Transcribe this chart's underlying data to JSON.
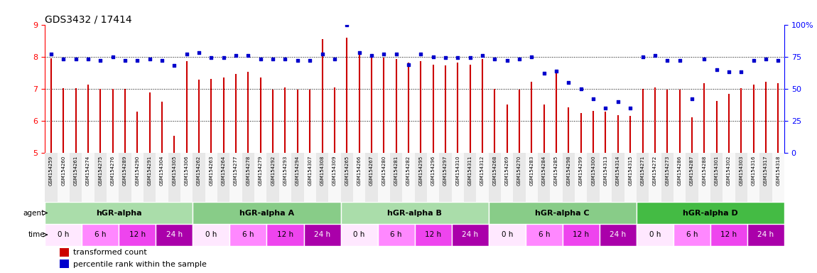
{
  "title": "GDS3432 / 17414",
  "samples": [
    "GSM154259",
    "GSM154260",
    "GSM154261",
    "GSM154274",
    "GSM154275",
    "GSM154276",
    "GSM154289",
    "GSM154290",
    "GSM154291",
    "GSM154304",
    "GSM154305",
    "GSM154306",
    "GSM154262",
    "GSM154263",
    "GSM154264",
    "GSM154277",
    "GSM154278",
    "GSM154279",
    "GSM154292",
    "GSM154293",
    "GSM154294",
    "GSM154307",
    "GSM154308",
    "GSM154309",
    "GSM154265",
    "GSM154266",
    "GSM154267",
    "GSM154280",
    "GSM154281",
    "GSM154282",
    "GSM154295",
    "GSM154296",
    "GSM154297",
    "GSM154310",
    "GSM154311",
    "GSM154312",
    "GSM154268",
    "GSM154269",
    "GSM154270",
    "GSM154283",
    "GSM154284",
    "GSM154285",
    "GSM154298",
    "GSM154299",
    "GSM154300",
    "GSM154313",
    "GSM154314",
    "GSM154315",
    "GSM154271",
    "GSM154272",
    "GSM154273",
    "GSM154286",
    "GSM154287",
    "GSM154288",
    "GSM154301",
    "GSM154302",
    "GSM154303",
    "GSM154316",
    "GSM154317",
    "GSM154318"
  ],
  "red_values": [
    7.95,
    7.02,
    7.02,
    7.12,
    7.0,
    7.0,
    7.0,
    6.28,
    6.88,
    6.6,
    5.53,
    7.85,
    7.28,
    7.3,
    7.35,
    7.45,
    7.52,
    7.35,
    6.98,
    7.05,
    6.98,
    6.98,
    8.55,
    7.05,
    8.6,
    8.05,
    8.02,
    7.98,
    7.92,
    7.82,
    7.85,
    7.75,
    7.72,
    7.82,
    7.75,
    7.92,
    7.0,
    6.5,
    6.98,
    7.22,
    6.5,
    7.5,
    6.42,
    6.25,
    6.3,
    6.28,
    6.18,
    6.15,
    7.0,
    7.05,
    6.98,
    6.98,
    6.1,
    7.18,
    6.62,
    6.85,
    7.02,
    7.12,
    7.22,
    7.18
  ],
  "blue_values": [
    77,
    73,
    73,
    73,
    72,
    75,
    72,
    72,
    73,
    72,
    68,
    77,
    78,
    74,
    74,
    76,
    76,
    73,
    73,
    73,
    72,
    72,
    77,
    73,
    100,
    78,
    76,
    77,
    77,
    69,
    77,
    75,
    74,
    74,
    74,
    76,
    73,
    72,
    73,
    75,
    62,
    64,
    55,
    50,
    42,
    35,
    40,
    35,
    75,
    76,
    72,
    72,
    42,
    73,
    65,
    63,
    63,
    72,
    73,
    72
  ],
  "agents": [
    {
      "label": "hGR-alpha",
      "start": 0,
      "end": 12,
      "light": true
    },
    {
      "label": "hGR-alpha A",
      "start": 12,
      "end": 24,
      "light": false
    },
    {
      "label": "hGR-alpha B",
      "start": 24,
      "end": 36,
      "light": true
    },
    {
      "label": "hGR-alpha C",
      "start": 36,
      "end": 48,
      "light": false
    },
    {
      "label": "hGR-alpha D",
      "start": 48,
      "end": 60,
      "light": true
    }
  ],
  "times": [
    {
      "label": "0 h",
      "start": 0,
      "end": 3
    },
    {
      "label": "6 h",
      "start": 3,
      "end": 6
    },
    {
      "label": "12 h",
      "start": 6,
      "end": 9
    },
    {
      "label": "24 h",
      "start": 9,
      "end": 12
    },
    {
      "label": "0 h",
      "start": 12,
      "end": 15
    },
    {
      "label": "6 h",
      "start": 15,
      "end": 18
    },
    {
      "label": "12 h",
      "start": 18,
      "end": 21
    },
    {
      "label": "24 h",
      "start": 21,
      "end": 24
    },
    {
      "label": "0 h",
      "start": 24,
      "end": 27
    },
    {
      "label": "6 h",
      "start": 27,
      "end": 30
    },
    {
      "label": "12 h",
      "start": 30,
      "end": 33
    },
    {
      "label": "24 h",
      "start": 33,
      "end": 36
    },
    {
      "label": "0 h",
      "start": 36,
      "end": 39
    },
    {
      "label": "6 h",
      "start": 39,
      "end": 42
    },
    {
      "label": "12 h",
      "start": 42,
      "end": 45
    },
    {
      "label": "24 h",
      "start": 45,
      "end": 48
    },
    {
      "label": "0 h",
      "start": 48,
      "end": 51
    },
    {
      "label": "6 h",
      "start": 51,
      "end": 54
    },
    {
      "label": "12 h",
      "start": 54,
      "end": 57
    },
    {
      "label": "24 h",
      "start": 57,
      "end": 60
    }
  ],
  "agent_color_light": "#AADDAA",
  "agent_color_dark": "#88CC88",
  "agent_color_D": "#44BB44",
  "time_colors": {
    "0 h": "#FFE8FF",
    "6 h": "#FF88FF",
    "12 h": "#EE44EE",
    "24 h": "#AA00AA"
  },
  "time_text_colors": {
    "0 h": "#000000",
    "6 h": "#000000",
    "12 h": "#000000",
    "24 h": "#FFFFFF"
  },
  "ylim_left": [
    5,
    9
  ],
  "ylim_right": [
    0,
    100
  ],
  "yticks_left": [
    5,
    6,
    7,
    8,
    9
  ],
  "yticks_right": [
    0,
    25,
    50,
    75,
    100
  ],
  "ytick_labels_right": [
    "0",
    "25",
    "50",
    "75",
    "100%"
  ],
  "bar_color": "#CC0000",
  "dot_color": "#0000CC",
  "background_color": "#FFFFFF",
  "title_fontsize": 10,
  "legend_red": "transformed count",
  "legend_blue": "percentile rank within the sample"
}
